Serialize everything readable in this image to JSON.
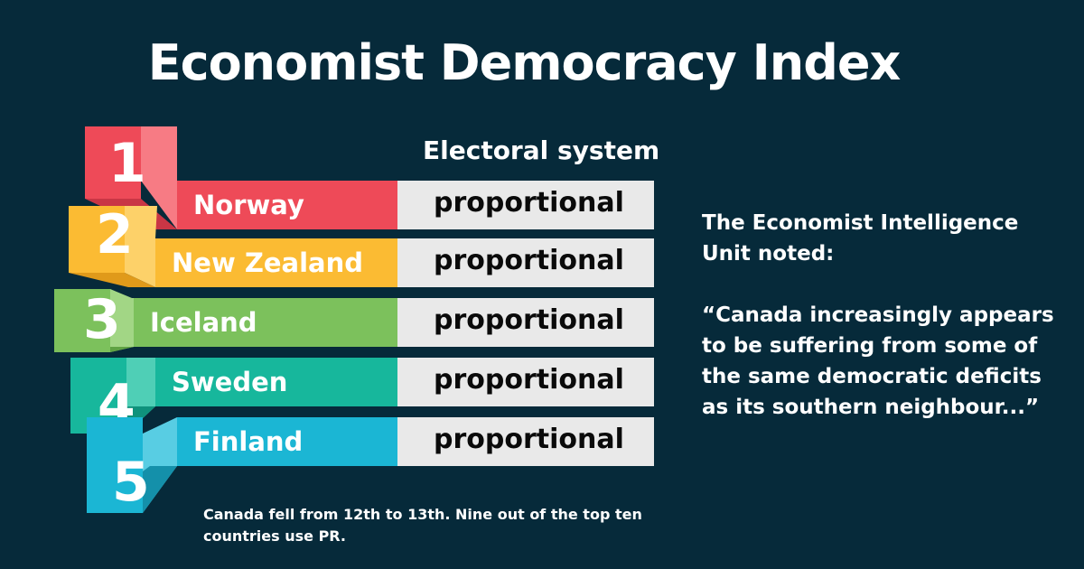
{
  "title": "Economist Democracy Index",
  "column_header": "Electoral system",
  "rankings": [
    {
      "rank": "1",
      "country": "Norway",
      "system": "proportional",
      "color_main": "#ee4a58",
      "color_light": "#f77b84",
      "color_dark": "#c93645"
    },
    {
      "rank": "2",
      "country": "New Zealand",
      "system": "proportional",
      "color_main": "#fbbb33",
      "color_light": "#fdd169",
      "color_dark": "#e09a1a"
    },
    {
      "rank": "3",
      "country": "Iceland",
      "system": "proportional",
      "color_main": "#7cc15c",
      "color_light": "#a2d685",
      "color_dark": "#5fa243"
    },
    {
      "rank": "4",
      "country": "Sweden",
      "system": "proportional",
      "color_main": "#17b79c",
      "color_light": "#4fcfb6",
      "color_dark": "#0f927c"
    },
    {
      "rank": "5",
      "country": "Finland",
      "system": "proportional",
      "color_main": "#1bb6d4",
      "color_light": "#58cde3",
      "color_dark": "#1490aa"
    }
  ],
  "quote": {
    "intro": "The Economist Intelligence Unit noted:",
    "text": "“Canada increasingly appears to be suffering from some of the same democratic deficits as its southern neighbour...”"
  },
  "footnote": "Canada fell from 12th to 13th. Nine out of the top ten countries use PR."
}
